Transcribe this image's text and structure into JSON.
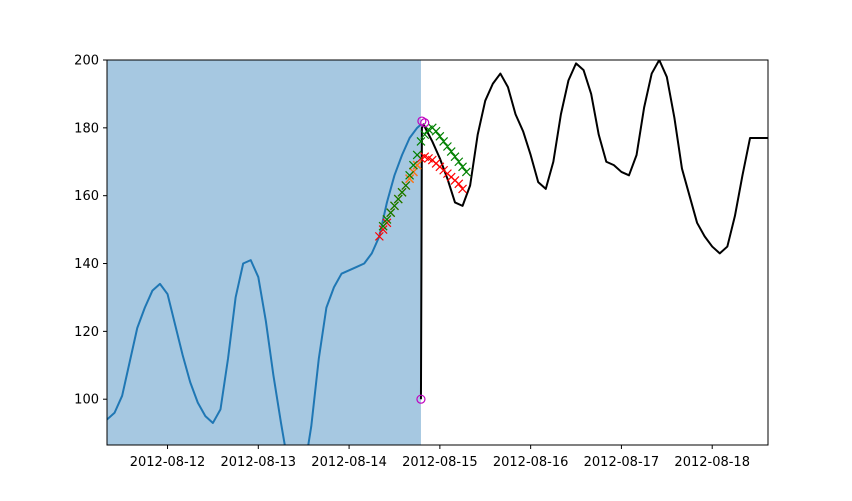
{
  "chart_data": {
    "type": "line",
    "title": "",
    "xlabel": "",
    "ylabel": "",
    "xlim": [
      "2012-08-11T08:00",
      "2012-08-18T14:45"
    ],
    "ylim": [
      86.5,
      200
    ],
    "grid": false,
    "legend": "none",
    "x_ticks": [
      "2012-08-12",
      "2012-08-13",
      "2012-08-14",
      "2012-08-15",
      "2012-08-16",
      "2012-08-17",
      "2012-08-18"
    ],
    "y_ticks": [
      100,
      120,
      140,
      160,
      180,
      200
    ],
    "shaded_region": {
      "x": [
        "2012-08-11T08:00",
        "2012-08-14T19:00"
      ],
      "color": "#a6c8e1"
    },
    "series": [
      {
        "style": "line",
        "color": "#1f77b4",
        "x": [
          "2012-08-11T08:00",
          "2012-08-11T10:00",
          "2012-08-11T12:00",
          "2012-08-11T14:00",
          "2012-08-11T16:00",
          "2012-08-11T18:00",
          "2012-08-11T20:00",
          "2012-08-11T22:00",
          "2012-08-12T00:00",
          "2012-08-12T02:00",
          "2012-08-12T04:00",
          "2012-08-12T06:00",
          "2012-08-12T08:00",
          "2012-08-12T10:00",
          "2012-08-12T12:00",
          "2012-08-12T14:00",
          "2012-08-12T16:00",
          "2012-08-12T18:00",
          "2012-08-12T20:00",
          "2012-08-12T22:00",
          "2012-08-13T00:00",
          "2012-08-13T02:00",
          "2012-08-13T04:00",
          "2012-08-13T06:00",
          "2012-08-13T08:00",
          "2012-08-13T10:00",
          "2012-08-13T12:00",
          "2012-08-13T14:00",
          "2012-08-13T16:00",
          "2012-08-13T18:00",
          "2012-08-13T20:00",
          "2012-08-13T22:00",
          "2012-08-14T00:00",
          "2012-08-14T02:00",
          "2012-08-14T04:00",
          "2012-08-14T06:00",
          "2012-08-14T08:00",
          "2012-08-14T10:00",
          "2012-08-14T12:00",
          "2012-08-14T14:00",
          "2012-08-14T16:00",
          "2012-08-14T18:00",
          "2012-08-14T19:00"
        ],
        "y": [
          94,
          96,
          101,
          111,
          121,
          127,
          132,
          134,
          131,
          122,
          113,
          105,
          99,
          95,
          93,
          97,
          112,
          130,
          140,
          141,
          136,
          123,
          107,
          93,
          80,
          76,
          78,
          92,
          112,
          127,
          133,
          137,
          138,
          139,
          140,
          143,
          148,
          158,
          166,
          172,
          177,
          180,
          181
        ]
      },
      {
        "style": "line",
        "color": "#000000",
        "x": [
          "2012-08-14T19:00",
          "2012-08-14T19:15",
          "2012-08-14T19:40",
          "2012-08-14T22:00",
          "2012-08-15T00:00",
          "2012-08-15T02:00",
          "2012-08-15T04:00",
          "2012-08-15T06:00",
          "2012-08-15T08:00",
          "2012-08-15T10:00",
          "2012-08-15T12:00",
          "2012-08-15T14:00",
          "2012-08-15T16:00",
          "2012-08-15T18:00",
          "2012-08-15T20:00",
          "2012-08-15T22:00",
          "2012-08-16T00:00",
          "2012-08-16T02:00",
          "2012-08-16T04:00",
          "2012-08-16T06:00",
          "2012-08-16T08:00",
          "2012-08-16T10:00",
          "2012-08-16T12:00",
          "2012-08-16T14:00",
          "2012-08-16T16:00",
          "2012-08-16T18:00",
          "2012-08-16T20:00",
          "2012-08-16T22:00",
          "2012-08-17T00:00",
          "2012-08-17T02:00",
          "2012-08-17T04:00",
          "2012-08-17T06:00",
          "2012-08-17T08:00",
          "2012-08-17T10:00",
          "2012-08-17T12:00",
          "2012-08-17T14:00",
          "2012-08-17T16:00",
          "2012-08-17T18:00",
          "2012-08-17T20:00",
          "2012-08-17T22:00",
          "2012-08-18T00:00",
          "2012-08-18T02:00",
          "2012-08-18T04:00",
          "2012-08-18T06:00",
          "2012-08-18T08:00",
          "2012-08-18T10:00",
          "2012-08-18T12:00",
          "2012-08-18T14:45"
        ],
        "y": [
          100,
          180,
          181,
          176,
          171,
          165,
          158,
          157,
          163,
          178,
          188,
          193,
          196,
          192,
          184,
          179,
          172,
          164,
          162,
          170,
          184,
          194,
          199,
          197,
          190,
          178,
          170,
          169,
          167,
          166,
          172,
          186,
          196,
          200,
          195,
          183,
          168,
          160,
          152,
          148,
          145,
          143,
          145,
          154,
          166,
          177,
          177,
          177
        ]
      },
      {
        "style": "x-markers",
        "color": "#ff0000",
        "x": [
          "2012-08-14T08:00",
          "2012-08-14T09:00",
          "2012-08-14T10:00",
          "2012-08-14T11:00",
          "2012-08-14T12:00",
          "2012-08-14T13:00",
          "2012-08-14T14:00",
          "2012-08-14T15:00",
          "2012-08-14T16:00",
          "2012-08-14T17:00",
          "2012-08-14T18:00",
          "2012-08-14T19:00",
          "2012-08-14T20:00",
          "2012-08-14T21:00",
          "2012-08-14T22:00",
          "2012-08-14T23:00",
          "2012-08-15T00:00",
          "2012-08-15T01:00",
          "2012-08-15T02:00",
          "2012-08-15T03:00",
          "2012-08-15T04:00",
          "2012-08-15T05:00",
          "2012-08-15T06:00"
        ],
        "y": [
          148,
          150,
          152,
          155,
          157,
          159,
          161,
          163,
          165,
          167,
          169,
          171,
          171.5,
          171,
          170.5,
          169.5,
          168.5,
          167.5,
          166.5,
          165.5,
          164.5,
          163.5,
          162
        ]
      },
      {
        "style": "x-markers",
        "color": "#ff7f0e",
        "x": [
          "2012-08-14T09:00",
          "2012-08-14T10:00",
          "2012-08-14T11:00",
          "2012-08-14T12:00",
          "2012-08-14T13:00",
          "2012-08-14T14:00",
          "2012-08-14T15:00",
          "2012-08-14T16:00",
          "2012-08-14T17:00",
          "2012-08-14T18:00"
        ],
        "y": [
          151,
          153,
          155,
          157,
          159,
          161,
          163,
          165,
          167,
          169
        ]
      },
      {
        "style": "x-markers",
        "color": "#008000",
        "x": [
          "2012-08-14T09:00",
          "2012-08-14T10:00",
          "2012-08-14T11:00",
          "2012-08-14T12:00",
          "2012-08-14T13:00",
          "2012-08-14T14:00",
          "2012-08-14T15:00",
          "2012-08-14T16:00",
          "2012-08-14T17:00",
          "2012-08-14T18:00",
          "2012-08-14T19:00",
          "2012-08-14T20:00",
          "2012-08-14T21:00",
          "2012-08-14T22:00",
          "2012-08-14T23:00",
          "2012-08-15T00:00",
          "2012-08-15T01:00",
          "2012-08-15T02:00",
          "2012-08-15T03:00",
          "2012-08-15T04:00",
          "2012-08-15T05:00",
          "2012-08-15T06:00",
          "2012-08-15T07:00"
        ],
        "y": [
          151,
          153,
          155,
          157,
          159,
          161,
          163,
          166,
          169,
          172,
          176,
          178,
          179.5,
          180,
          179,
          177.5,
          176,
          174.5,
          173,
          171.5,
          170,
          168.5,
          167
        ]
      },
      {
        "style": "circle-markers",
        "color": "#bf00bf",
        "x": [
          "2012-08-14T19:00",
          "2012-08-14T19:15",
          "2012-08-14T20:00"
        ],
        "y": [
          100,
          182,
          181.5
        ]
      }
    ]
  }
}
